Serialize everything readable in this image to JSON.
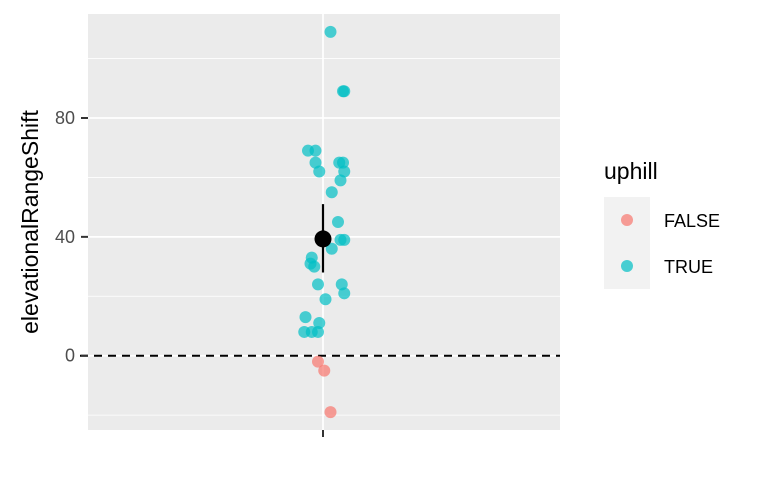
{
  "chart_data": {
    "type": "scatter",
    "xlabel": "",
    "ylabel": "elevationalRangeShift",
    "x_ticks": [],
    "y_ticks": [
      0,
      40,
      80
    ],
    "ylim": [
      -25,
      115
    ],
    "grid": true,
    "reference_line": {
      "y": 0,
      "style": "dashed"
    },
    "legend": {
      "title": "uphill",
      "placement": "right",
      "entries": [
        {
          "label": "FALSE",
          "color": "#F8766D"
        },
        {
          "label": "TRUE",
          "color": "#00BFC4"
        }
      ]
    },
    "series": [
      {
        "name": "FALSE",
        "color": "#F8766D",
        "points": [
          {
            "jitter": -0.02,
            "y": -2
          },
          {
            "jitter": 0.005,
            "y": -5
          },
          {
            "jitter": 0.03,
            "y": -19
          }
        ]
      },
      {
        "name": "TRUE",
        "color": "#00BFC4",
        "points": [
          {
            "jitter": 0.03,
            "y": 109
          },
          {
            "jitter": 0.08,
            "y": 89
          },
          {
            "jitter": 0.085,
            "y": 89
          },
          {
            "jitter": -0.06,
            "y": 69
          },
          {
            "jitter": -0.03,
            "y": 69
          },
          {
            "jitter": -0.03,
            "y": 65
          },
          {
            "jitter": 0.065,
            "y": 65
          },
          {
            "jitter": 0.08,
            "y": 65
          },
          {
            "jitter": -0.015,
            "y": 62
          },
          {
            "jitter": 0.085,
            "y": 62
          },
          {
            "jitter": 0.07,
            "y": 59
          },
          {
            "jitter": 0.035,
            "y": 55
          },
          {
            "jitter": 0.06,
            "y": 45
          },
          {
            "jitter": 0.07,
            "y": 39
          },
          {
            "jitter": 0.085,
            "y": 39
          },
          {
            "jitter": 0.035,
            "y": 36
          },
          {
            "jitter": -0.05,
            "y": 31
          },
          {
            "jitter": -0.035,
            "y": 30
          },
          {
            "jitter": -0.045,
            "y": 33
          },
          {
            "jitter": -0.02,
            "y": 24
          },
          {
            "jitter": 0.075,
            "y": 24
          },
          {
            "jitter": 0.085,
            "y": 21
          },
          {
            "jitter": 0.01,
            "y": 19
          },
          {
            "jitter": -0.07,
            "y": 13
          },
          {
            "jitter": -0.015,
            "y": 11
          },
          {
            "jitter": -0.075,
            "y": 8
          },
          {
            "jitter": -0.045,
            "y": 8
          },
          {
            "jitter": -0.02,
            "y": 8
          }
        ]
      }
    ],
    "summary": {
      "mean": 39.3,
      "lower": 28,
      "upper": 51,
      "color": "#000000"
    }
  }
}
